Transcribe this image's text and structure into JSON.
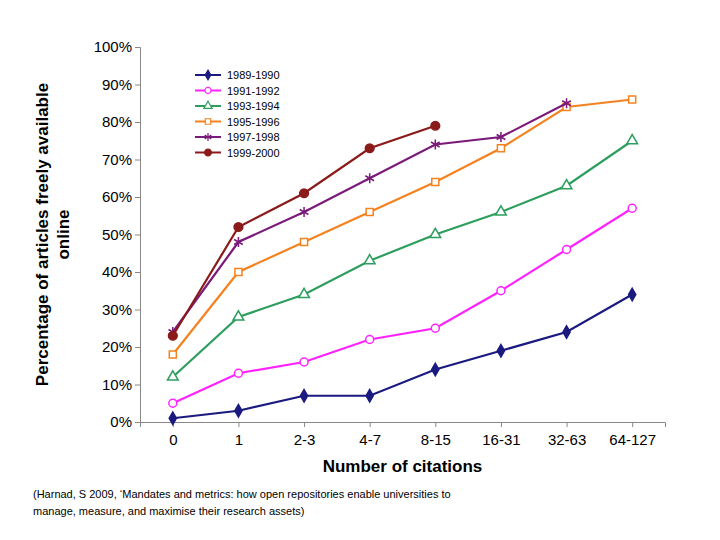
{
  "chart_data": {
    "type": "line",
    "xlabel": "Number of citations",
    "ylabel": [
      "Percentage of articles freely available",
      "online"
    ],
    "source": [
      "(Harnad, S 2009, ‘Mandates and metrics: how open repositories enable universities to",
      "manage, measure, and maximise their research assets)"
    ],
    "categories": [
      "0",
      "1",
      "2-3",
      "4-7",
      "8-15",
      "16-31",
      "32-63",
      "64-127"
    ],
    "ylim": [
      0,
      100
    ],
    "yticks": [
      {
        "value": 0,
        "label": "0%"
      },
      {
        "value": 10,
        "label": "10%"
      },
      {
        "value": 20,
        "label": "20%"
      },
      {
        "value": 30,
        "label": "30%"
      },
      {
        "value": 40,
        "label": "40%"
      },
      {
        "value": 50,
        "label": "50%"
      },
      {
        "value": 60,
        "label": "60%"
      },
      {
        "value": 70,
        "label": "70%"
      },
      {
        "value": 80,
        "label": "80%"
      },
      {
        "value": 90,
        "label": "90%"
      },
      {
        "value": 100,
        "label": "100%"
      }
    ],
    "grid": false,
    "legend": "top-left",
    "series": [
      {
        "name": "1989-1990",
        "color": "#1a1a80",
        "marker": "diamond",
        "values": [
          1,
          3,
          7,
          7,
          14,
          19,
          24,
          34
        ]
      },
      {
        "name": "1991-1992",
        "color": "#ff22ff",
        "marker": "circle-open",
        "values": [
          5,
          13,
          16,
          22,
          25,
          35,
          46,
          57
        ]
      },
      {
        "name": "1993-1994",
        "color": "#2e9e5e",
        "marker": "triangle-open",
        "values": [
          12,
          28,
          34,
          43,
          50,
          56,
          63,
          75
        ]
      },
      {
        "name": "1995-1996",
        "color": "#f5821f",
        "marker": "square-open",
        "values": [
          18,
          40,
          48,
          56,
          64,
          73,
          84,
          86
        ]
      },
      {
        "name": "1997-1998",
        "color": "#7a1a7a",
        "marker": "asterisk",
        "values": [
          24,
          48,
          56,
          65,
          74,
          76,
          85,
          null
        ]
      },
      {
        "name": "1999-2000",
        "color": "#8b1a1a",
        "marker": "circle",
        "values": [
          23,
          52,
          61,
          73,
          79,
          null,
          null,
          null
        ]
      }
    ]
  }
}
